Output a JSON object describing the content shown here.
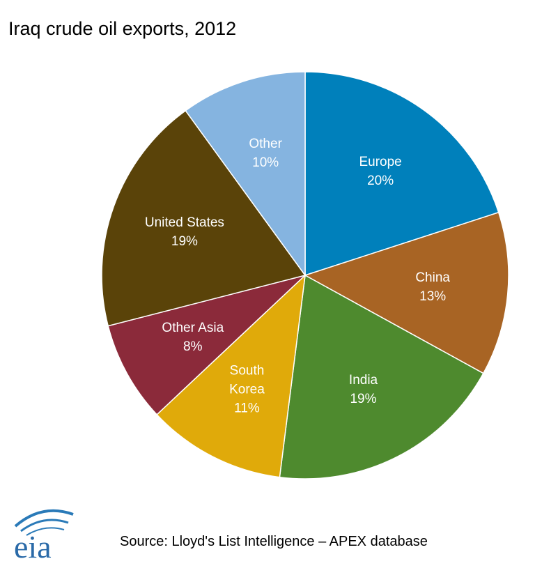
{
  "chart_data": {
    "type": "pie",
    "title": "Iraq crude oil exports, 2012",
    "categories": [
      "Europe",
      "China",
      "India",
      "South Korea",
      "Other Asia",
      "United States",
      "Other"
    ],
    "values": [
      20,
      13,
      19,
      11,
      8,
      19,
      10
    ],
    "value_labels": [
      "20%",
      "13%",
      "19%",
      "11%",
      "8%",
      "19%",
      "10%"
    ],
    "colors": [
      "#0080bb",
      "#a86424",
      "#4e8a2e",
      "#e0aa0a",
      "#8b2a3a",
      "#5a4309",
      "#85b4e0"
    ],
    "source": "Source: Lloyd's List Intelligence – APEX database",
    "logo": "eia"
  }
}
